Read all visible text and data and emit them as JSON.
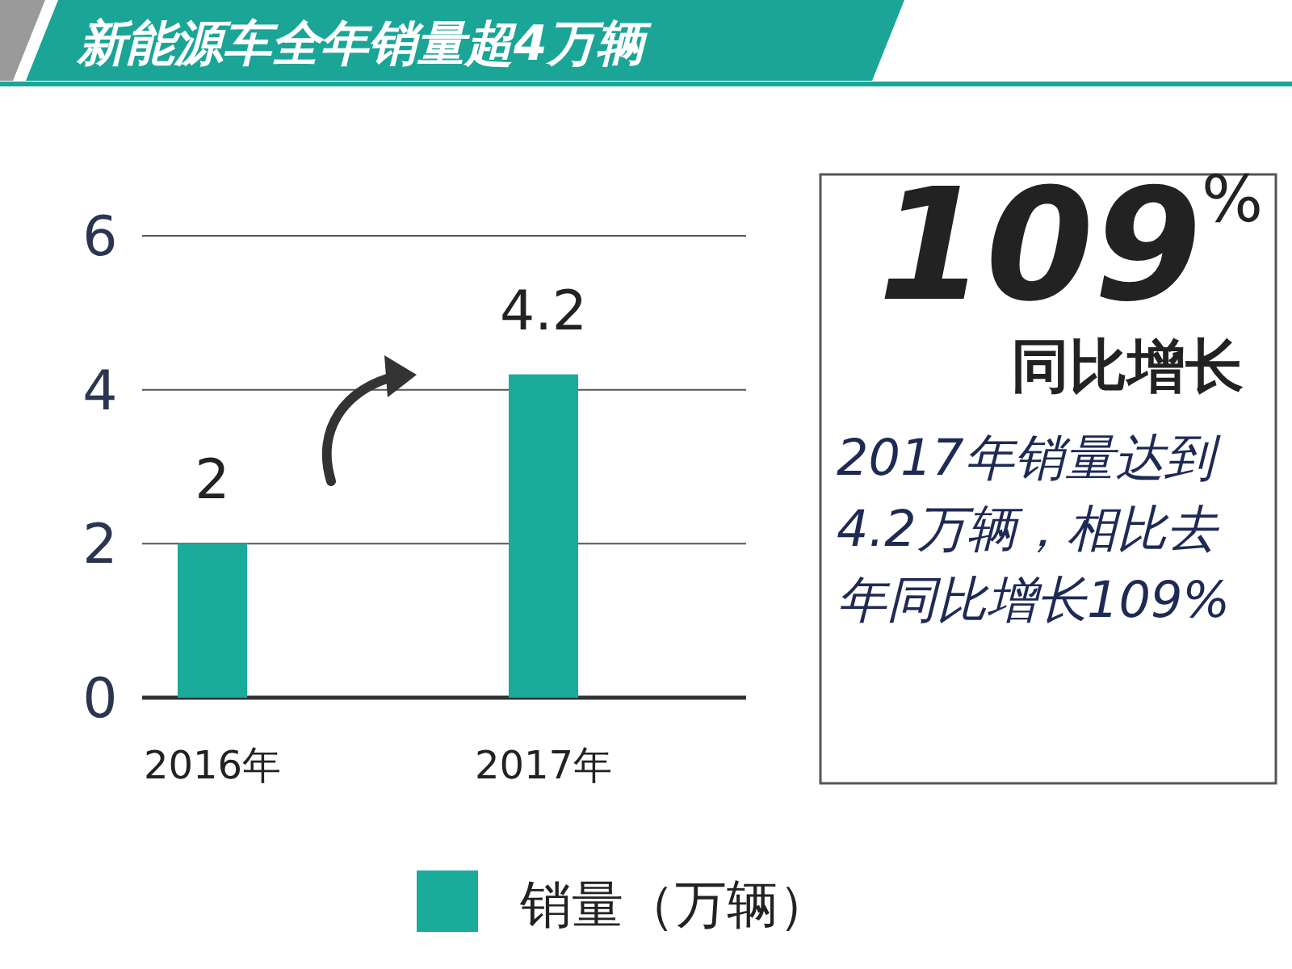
{
  "chart_data": {
    "type": "bar",
    "title": "新能源车全年销量超4万辆",
    "categories": [
      "2016年",
      "2017年"
    ],
    "series": [
      {
        "name": "销量（万辆）",
        "color": "#1aab9b",
        "values": [
          2,
          4.2
        ]
      }
    ],
    "ylim": [
      0,
      6
    ],
    "yticks": [
      0,
      2,
      4,
      6
    ],
    "grid": "y",
    "legend": "bottom",
    "data_labels": true,
    "annotations": [
      "109$^{%}$",
      "同比增长",
      "2017年销量达到4.2万辆，相比去年同比增长109%"
    ]
  }
}
